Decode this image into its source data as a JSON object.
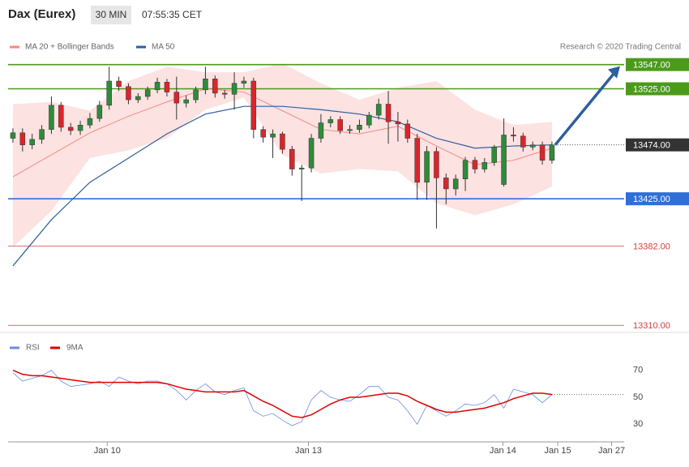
{
  "header": {
    "title": "Dax (Eurex)",
    "interval": "30 MIN",
    "time": "07:55:35 CET",
    "credit": "Research © 2020 Trading Central"
  },
  "chart_data": [
    {
      "type": "candlestick",
      "xlim": [
        0,
        64
      ],
      "ylim": [
        13305,
        13560
      ],
      "up_color": "#2e8b3a",
      "down_color": "#d9262b",
      "open": [
        13480,
        13485,
        13474,
        13479,
        13488,
        13510,
        13490,
        13487,
        13492,
        13498,
        13510,
        13532,
        13527,
        13515,
        13518,
        13524,
        13531,
        13522,
        13512,
        13515,
        13524,
        13534,
        13521,
        13520,
        13530,
        13532,
        13488,
        13481,
        13484,
        13470,
        13452,
        13453,
        13480,
        13494,
        13497,
        13487,
        13488,
        13492,
        13501,
        13511,
        13495,
        13493,
        13480,
        13440,
        13468,
        13444,
        13434,
        13443,
        13460,
        13452,
        13458,
        13438,
        13483,
        13482,
        13472,
        13474,
        13460
      ],
      "high": [
        13489,
        13489,
        13484,
        13492,
        13518,
        13513,
        13494,
        13496,
        13503,
        13514,
        13545,
        13536,
        13530,
        13521,
        13527,
        13535,
        13534,
        13536,
        13519,
        13527,
        13545,
        13537,
        13524,
        13540,
        13536,
        13535,
        13491,
        13488,
        13486,
        13473,
        13456,
        13484,
        13502,
        13500,
        13500,
        13492,
        13497,
        13504,
        13516,
        13523,
        13504,
        13497,
        13484,
        13473,
        13472,
        13448,
        13447,
        13463,
        13463,
        13462,
        13474,
        13498,
        13490,
        13485,
        13477,
        13477,
        13477
      ],
      "low": [
        13476,
        13468,
        13470,
        13475,
        13484,
        13486,
        13483,
        13483,
        13489,
        13495,
        13506,
        13523,
        13511,
        13512,
        13515,
        13521,
        13518,
        13497,
        13508,
        13512,
        13520,
        13517,
        13516,
        13506,
        13526,
        13480,
        13476,
        13462,
        13466,
        13446,
        13423,
        13449,
        13476,
        13490,
        13484,
        13484,
        13485,
        13489,
        13497,
        13475,
        13477,
        13476,
        13424,
        13424,
        13398,
        13420,
        13428,
        13432,
        13448,
        13449,
        13455,
        13436,
        13477,
        13468,
        13469,
        13456,
        13457
      ],
      "close": [
        13485,
        13474,
        13479,
        13488,
        13510,
        13490,
        13487,
        13492,
        13498,
        13510,
        13532,
        13527,
        13515,
        13518,
        13524,
        13531,
        13522,
        13512,
        13515,
        13524,
        13534,
        13521,
        13520,
        13530,
        13532,
        13488,
        13481,
        13484,
        13470,
        13452,
        13453,
        13480,
        13494,
        13497,
        13487,
        13488,
        13492,
        13501,
        13511,
        13495,
        13493,
        13480,
        13440,
        13468,
        13444,
        13434,
        13443,
        13460,
        13452,
        13458,
        13472,
        13483,
        13482,
        13472,
        13474,
        13460,
        13474
      ],
      "indicator_x": [
        0.5,
        4.5,
        8.5,
        12.5,
        16.5,
        20.5,
        24.5,
        28.5,
        32.5,
        36.5,
        40.5,
        44.5,
        48.5,
        52.5,
        56.5
      ],
      "series": [
        {
          "name": "MA 20 + Bollinger Bands",
          "color": "#f28b82",
          "band_color": "#fde2e2",
          "values": [
            13445,
            13465,
            13485,
            13500,
            13513,
            13525,
            13522,
            13505,
            13488,
            13484,
            13491,
            13473,
            13456,
            13460,
            13471
          ],
          "upper": [
            13511,
            13513,
            13505,
            13532,
            13545,
            13540,
            13540,
            13548,
            13530,
            13515,
            13526,
            13532,
            13506,
            13492,
            13495
          ],
          "lower": [
            13381,
            13414,
            13462,
            13469,
            13480,
            13506,
            13517,
            13465,
            13448,
            13452,
            13450,
            13421,
            13410,
            13420,
            13436
          ]
        },
        {
          "name": "MA 50",
          "color": "#2e5f9e",
          "values": [
            13364,
            13406,
            13440,
            13462,
            13484,
            13502,
            13509,
            13509,
            13506,
            13502,
            13495,
            13480,
            13471,
            13473,
            13474
          ]
        }
      ],
      "levels": [
        {
          "value": 13547,
          "label": "13547.00",
          "color": "#4c9a1c",
          "line": "solid",
          "box": true
        },
        {
          "value": 13525,
          "label": "13525.00",
          "color": "#4c9a1c",
          "line": "solid",
          "box": true
        },
        {
          "value": 13474,
          "label": "13474.00",
          "color": "#333333",
          "line": "dotted",
          "box": true
        },
        {
          "value": 13425,
          "label": "13425.00",
          "color": "#2f6fd6",
          "line": "solid",
          "box": true
        },
        {
          "value": 13382,
          "label": "13382.00",
          "color": "#d04040",
          "line": "thin",
          "box": false
        },
        {
          "value": 13310,
          "label": "13310.00",
          "color": "#d04040",
          "line": "thin",
          "box": false
        }
      ],
      "arrow_color": "#2e5f9e"
    },
    {
      "type": "line",
      "xlim": [
        0,
        64
      ],
      "ylim": [
        20,
        92
      ],
      "yticks": [
        70,
        50,
        30
      ],
      "xticks": [
        {
          "value": 10.3,
          "label": "Jan 10"
        },
        {
          "value": 31.2,
          "label": "Jan 13"
        },
        {
          "value": 51.4,
          "label": "Jan 14"
        },
        {
          "value": 57.1,
          "label": "Jan 15"
        },
        {
          "value": 62.7,
          "label": "Jan 27"
        }
      ],
      "series": [
        {
          "name": "RSI",
          "color": "#6b8de0",
          "values": [
            68,
            62,
            64,
            66,
            70,
            62,
            58,
            59,
            60,
            62,
            58,
            65,
            62,
            60,
            62,
            62,
            60,
            55,
            48,
            55,
            60,
            54,
            52,
            55,
            57,
            40,
            36,
            38,
            33,
            29,
            32,
            48,
            55,
            50,
            48,
            47,
            52,
            58,
            58,
            50,
            48,
            40,
            30,
            44,
            40,
            36,
            40,
            45,
            44,
            46,
            52,
            42,
            56,
            54,
            52,
            46,
            52
          ]
        },
        {
          "name": "9MA",
          "color": "#e00000",
          "values": [
            70,
            67,
            66,
            66,
            65,
            64,
            63,
            62,
            61,
            61,
            61,
            61,
            61,
            61,
            61,
            61,
            60,
            58,
            56,
            55,
            54,
            54,
            54,
            54,
            55,
            51,
            47,
            44,
            40,
            36,
            35,
            37,
            41,
            45,
            48,
            50,
            50,
            51,
            52,
            53,
            53,
            51,
            47,
            44,
            41,
            39,
            39,
            40,
            41,
            42,
            44,
            46,
            49,
            51,
            53,
            53,
            52
          ]
        }
      ]
    }
  ]
}
